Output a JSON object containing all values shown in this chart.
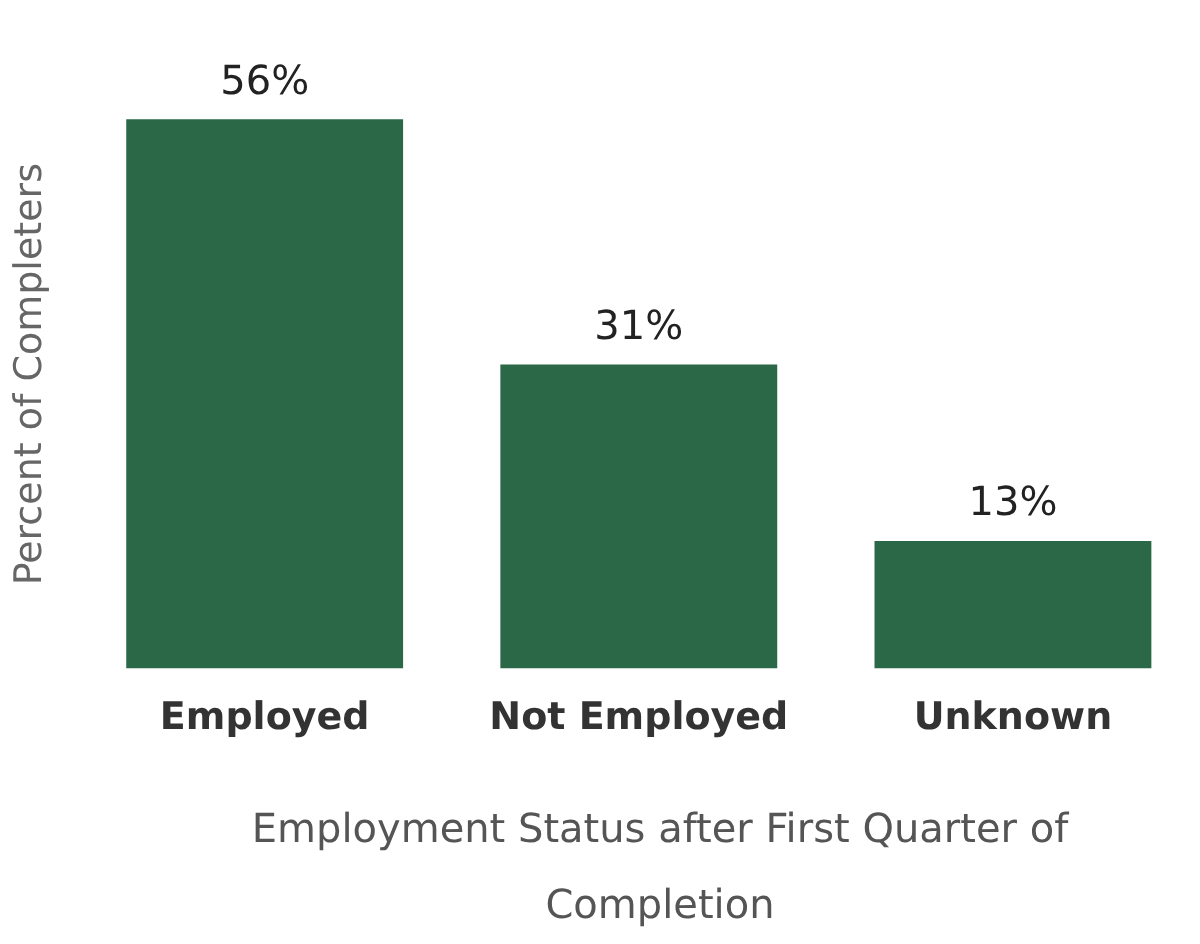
{
  "chart_data": {
    "type": "bar",
    "xlabel": "Employment Status after First Quarter of Completion",
    "ylabel": "Percent of Completers",
    "categories": [
      "Employed",
      "Not Employed",
      "Unknown"
    ],
    "values": [
      56,
      31,
      13
    ],
    "color": "#2a6847",
    "value_labels": [
      "56%",
      "31%",
      "13%"
    ],
    "grid": false,
    "legend": false
  }
}
